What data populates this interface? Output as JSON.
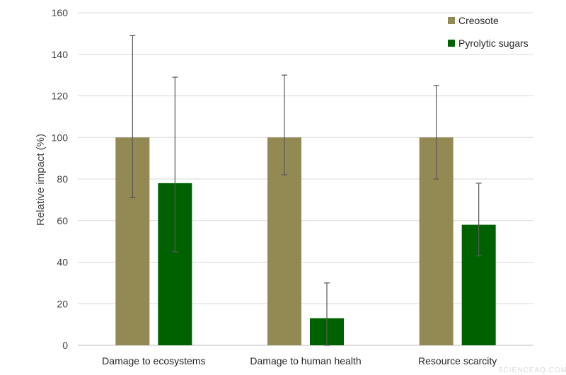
{
  "chart_data": {
    "type": "bar",
    "categories": [
      "Damage to ecosystems",
      "Damage to human health",
      "Resource scarcity"
    ],
    "series": [
      {
        "name": "Creosote",
        "color": "#938953",
        "values": [
          100,
          100,
          100
        ],
        "error_low": [
          71,
          82,
          80
        ],
        "error_high": [
          149,
          130,
          125
        ]
      },
      {
        "name": "Pyrolytic sugars",
        "color": "#006100",
        "values": [
          78,
          13,
          58
        ],
        "error_low": [
          45,
          0,
          43
        ],
        "error_high": [
          129,
          30,
          78
        ]
      }
    ],
    "ylabel": "Relative impact (%)",
    "ylim": [
      0,
      160
    ],
    "yticks": [
      0,
      20,
      40,
      60,
      80,
      100,
      120,
      140,
      160
    ],
    "grid": true,
    "legend_position": "top-right"
  },
  "watermark": "SCIENCEAQ.COM"
}
